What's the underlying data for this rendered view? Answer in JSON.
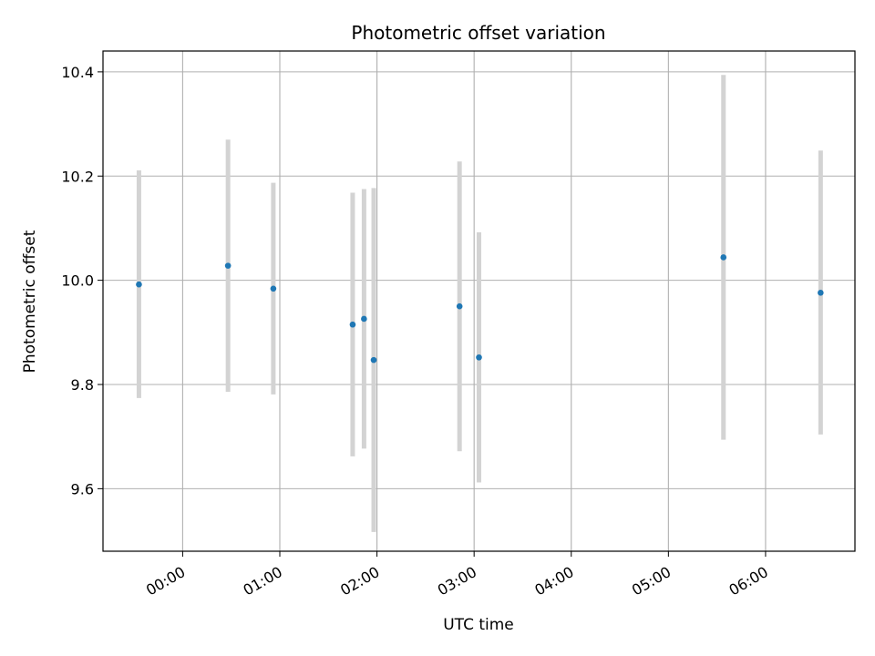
{
  "chart_data": {
    "type": "scatter",
    "title": "Photometric offset variation",
    "xlabel": "UTC time",
    "ylabel": "Photometric offset",
    "x_ticks": [
      "00:00",
      "01:00",
      "02:00",
      "03:00",
      "04:00",
      "05:00",
      "06:00"
    ],
    "x_tick_hours": [
      0,
      1,
      2,
      3,
      4,
      5,
      6
    ],
    "xlim_hours": [
      -0.82,
      6.92
    ],
    "y_ticks": [
      "9.6",
      "9.8",
      "10.0",
      "10.2",
      "10.4"
    ],
    "y_tick_values": [
      9.6,
      9.8,
      10.0,
      10.2,
      10.4
    ],
    "ylim": [
      9.48,
      10.44
    ],
    "grid": true,
    "legend": "none",
    "points": [
      {
        "time": "23:33",
        "y": 9.992,
        "low": 9.774,
        "high": 10.211
      },
      {
        "time": "00:28",
        "y": 10.028,
        "low": 9.786,
        "high": 10.27
      },
      {
        "time": "00:56",
        "y": 9.984,
        "low": 9.781,
        "high": 10.187
      },
      {
        "time": "01:45",
        "y": 9.915,
        "low": 9.662,
        "high": 10.168
      },
      {
        "time": "01:52",
        "y": 9.926,
        "low": 9.677,
        "high": 10.175
      },
      {
        "time": "01:58",
        "y": 9.847,
        "low": 9.517,
        "high": 10.177
      },
      {
        "time": "02:51",
        "y": 9.95,
        "low": 9.672,
        "high": 10.228
      },
      {
        "time": "03:03",
        "y": 9.852,
        "low": 9.612,
        "high": 10.092
      },
      {
        "time": "05:34",
        "y": 10.044,
        "low": 9.694,
        "high": 10.394
      },
      {
        "time": "06:34",
        "y": 9.976,
        "low": 9.704,
        "high": 10.249
      }
    ],
    "marker_color": "#1f77b4",
    "errorbar_color": "#d3d3d3",
    "grid_color": "#b0b0b0"
  }
}
